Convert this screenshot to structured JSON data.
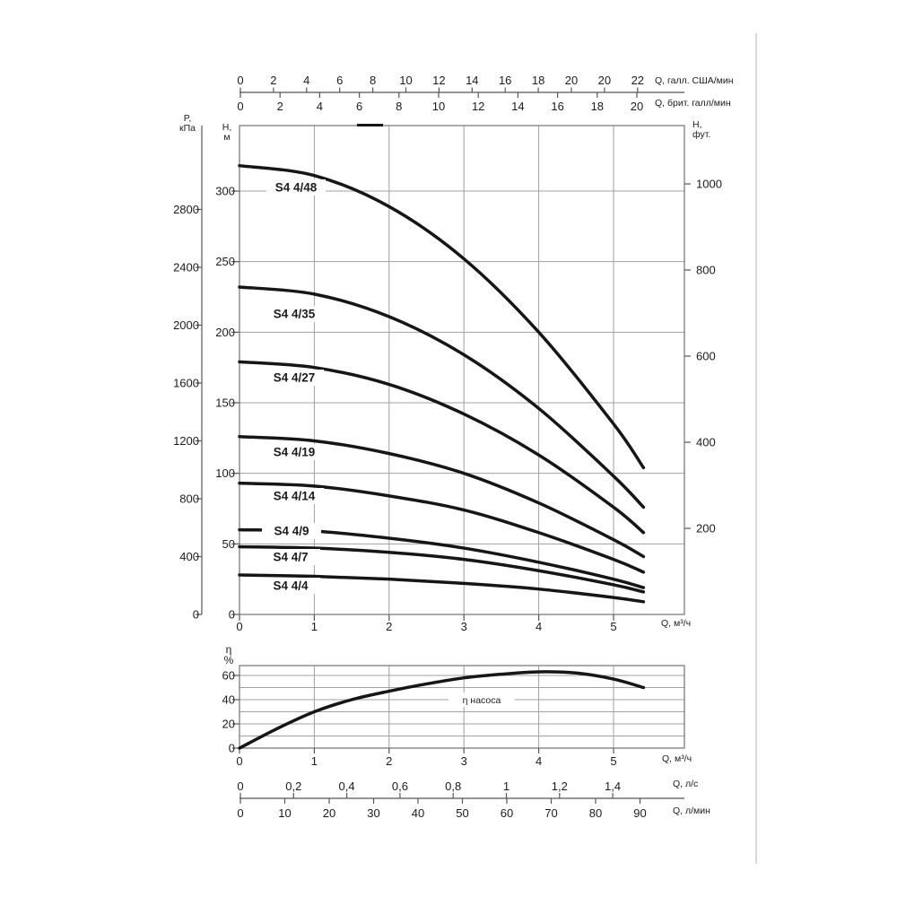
{
  "colors": {
    "curve": "#161616",
    "grid": "#a0a0a0",
    "frame": "#7d7d7d",
    "axis": "#565656",
    "text": "#1c1c1c",
    "label_bg": "#ffffff",
    "page_edge": "#d9d9d9"
  },
  "labels": {
    "top_us": "Q, галл. США/мин",
    "top_imp": "Q, брит. галл/мин",
    "pressure_1": "P,",
    "pressure_2": "кПа",
    "head_1": "H,",
    "head_2": "м",
    "feet_1": "H,",
    "feet_2": "фут.",
    "q_m3h_main": "Q, м³/ч",
    "q_m3h_eff": "Q, м³/ч",
    "eta_1": "η",
    "eta_2": "%",
    "eta_curve": "η насоса",
    "q_ls": "Q, л/с",
    "q_lmin": "Q, л/мин"
  },
  "axis_ticks": {
    "us_gpm": [
      "0",
      "2",
      "4",
      "6",
      "8",
      "10",
      "12",
      "14",
      "16",
      "18",
      "20",
      "20",
      "22"
    ],
    "imp_gpm": [
      "0",
      "2",
      "4",
      "6",
      "8",
      "10",
      "12",
      "14",
      "16",
      "18",
      "20"
    ],
    "m3h": [
      "0",
      "1",
      "2",
      "3",
      "4",
      "5"
    ],
    "head_m": [
      "300",
      "250",
      "200",
      "150",
      "100",
      "50",
      "0"
    ],
    "pressure_kpa": [
      "2800",
      "2400",
      "2000",
      "1600",
      "1200",
      "800",
      "400",
      "0"
    ],
    "feet": [
      "1000",
      "800",
      "600",
      "400",
      "200"
    ],
    "eta_pct": [
      "60",
      "40",
      "20",
      "0"
    ],
    "liters_sec": [
      "0",
      "0,2",
      "0,4",
      "0,6",
      "0,8",
      "1",
      "1,2",
      "1,4"
    ],
    "liters_min": [
      "0",
      "10",
      "20",
      "30",
      "40",
      "50",
      "60",
      "70",
      "80",
      "90"
    ]
  },
  "chart_data": [
    {
      "type": "line",
      "title": "S4 4 submersible pump head curves",
      "xlabel": "Q, м³/ч",
      "ylabel": "H, м",
      "xlim": [
        0,
        5.95
      ],
      "ylim": [
        0,
        346
      ],
      "grid": true,
      "alt_x_scales": [
        "Q, галл. США/мин",
        "Q, брит. галл/мин",
        "Q, л/с",
        "Q, л/мин"
      ],
      "alt_y_scales": [
        "P, кПа",
        "H, фут."
      ],
      "x": [
        0,
        1,
        2,
        3,
        4,
        5,
        5.4
      ],
      "series": [
        {
          "name": "S4 4/48",
          "values": [
            318,
            311,
            289,
            252,
            200,
            135,
            104
          ]
        },
        {
          "name": "S4 4/35",
          "values": [
            232,
            227,
            211,
            184,
            146,
            98,
            76
          ]
        },
        {
          "name": "S4 4/27",
          "values": [
            179,
            175,
            163,
            142,
            113,
            76,
            58
          ]
        },
        {
          "name": "S4 4/19",
          "values": [
            126,
            123,
            114,
            100,
            79,
            53,
            41
          ]
        },
        {
          "name": "S4 4/14",
          "values": [
            93,
            91,
            84,
            74,
            58,
            39,
            30
          ]
        },
        {
          "name": "S4 4/9",
          "values": [
            60,
            59,
            54,
            47,
            37,
            25,
            19
          ]
        },
        {
          "name": "S4 4/7",
          "values": [
            48,
            47,
            44,
            39,
            31,
            21,
            16
          ]
        },
        {
          "name": "S4 4/4",
          "values": [
            28,
            27,
            25,
            22,
            18,
            12,
            9
          ]
        }
      ]
    },
    {
      "type": "line",
      "title": "η насоса",
      "xlabel": "Q, м³/ч",
      "ylabel": "η %",
      "xlim": [
        0,
        5.95
      ],
      "ylim": [
        0,
        68
      ],
      "grid": true,
      "x": [
        0,
        0.5,
        1,
        1.5,
        2,
        2.5,
        3,
        3.5,
        4,
        4.5,
        5,
        5.4
      ],
      "series": [
        {
          "name": "η насоса",
          "values": [
            0,
            16,
            30,
            40,
            47,
            53,
            58,
            61,
            63,
            62,
            57,
            50
          ]
        }
      ]
    }
  ]
}
